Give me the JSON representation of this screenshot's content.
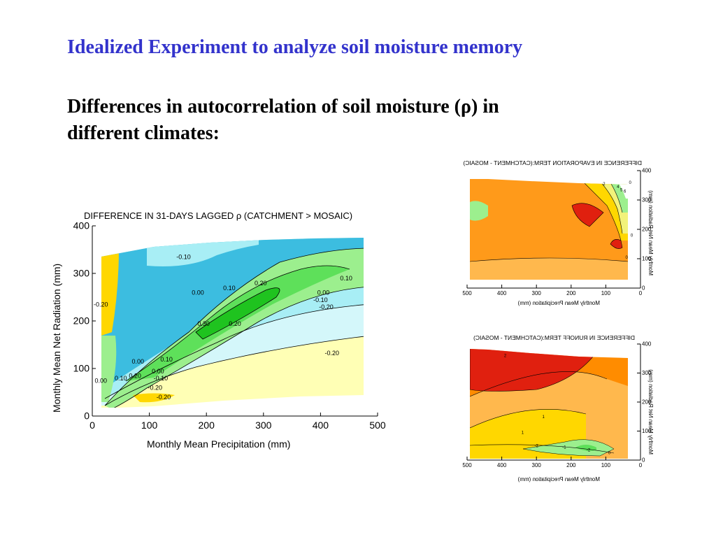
{
  "slide": {
    "title": "Idealized Experiment to analyze soil moisture memory",
    "subtitle_line1": "Differences in autocorrelation of soil moisture (ρ) in",
    "subtitle_line2": "different climates:"
  },
  "colors": {
    "title": "#3333cc",
    "neg_strong": "#3cbde0",
    "neg": "#a8eef5",
    "neg_weak": "#d4f7fa",
    "pos_weak": "#ffffb5",
    "pos": "#f2f27a",
    "green_light": "#9cef8e",
    "green_mid": "#5ee05a",
    "green_dark": "#1fc31f",
    "yellow": "#ffd700",
    "orange": "#ff9a1a",
    "orange_dark": "#ff8400",
    "red": "#e0200f"
  },
  "chart_data": [
    {
      "id": "lagged-rho",
      "type": "contour",
      "title": "DIFFERENCE IN 31-DAYS LAGGED ρ (CATCHMENT > MOSAIC)",
      "xlabel": "Monthly Mean Precipitation (mm)",
      "ylabel": "Monthly Mean Net Radiation (mm)",
      "xlim": [
        0,
        500
      ],
      "ylim": [
        0,
        400
      ],
      "xticks": [
        0,
        100,
        200,
        300,
        400,
        500
      ],
      "yticks": [
        0,
        100,
        200,
        300,
        400
      ],
      "contour_labels": [
        {
          "text": "-0.10",
          "x": 160,
          "y": 330
        },
        {
          "text": "0.00",
          "x": 185,
          "y": 255
        },
        {
          "text": "0.10",
          "x": 240,
          "y": 265
        },
        {
          "text": "0.20",
          "x": 295,
          "y": 275
        },
        {
          "text": "0.10",
          "x": 445,
          "y": 285
        },
        {
          "text": "0.00",
          "x": 405,
          "y": 255
        },
        {
          "text": "-0.10",
          "x": 400,
          "y": 240
        },
        {
          "text": "-0.20",
          "x": 410,
          "y": 225
        },
        {
          "text": "0.30",
          "x": 195,
          "y": 190
        },
        {
          "text": "0.20",
          "x": 250,
          "y": 190
        },
        {
          "text": "-0.20",
          "x": 420,
          "y": 128
        },
        {
          "text": "0.00",
          "x": 80,
          "y": 110
        },
        {
          "text": "0.10",
          "x": 130,
          "y": 115
        },
        {
          "text": "0.00",
          "x": 115,
          "y": 90
        },
        {
          "text": "-0.10",
          "x": 120,
          "y": 75
        },
        {
          "text": "-0.20",
          "x": 110,
          "y": 55
        },
        {
          "text": "0.20",
          "x": 75,
          "y": 80
        },
        {
          "text": "0.10",
          "x": 50,
          "y": 75
        },
        {
          "text": "-0.20",
          "x": 125,
          "y": 35
        },
        {
          "text": "-0.20",
          "x": 15,
          "y": 230
        },
        {
          "text": "0.00",
          "x": 15,
          "y": 70
        }
      ]
    },
    {
      "id": "evaporation-term",
      "type": "contour",
      "title": "DIFFERENCE IN EVAPORATION TERM:(CATCHMENT - MOSAIC)",
      "xlabel": "Monthly Mean Precipitation (mm)",
      "ylabel": "Monthly Mean Net Radiation (mm)",
      "xlim": [
        0,
        500
      ],
      "ylim": [
        0,
        400
      ],
      "xticks": [
        0,
        100,
        200,
        300,
        400,
        500
      ],
      "yticks": [
        0,
        100,
        200,
        300,
        400
      ],
      "contour_labels": [
        {
          "text": "0",
          "x": 30,
          "y": 355
        },
        {
          "text": "0",
          "x": 40,
          "y": 100
        },
        {
          "text": "0",
          "x": 25,
          "y": 175
        },
        {
          "text": "2",
          "x": 105,
          "y": 350
        },
        {
          "text": "4",
          "x": 65,
          "y": 340
        },
        {
          "text": "5",
          "x": 55,
          "y": 330
        },
        {
          "text": "6",
          "x": 45,
          "y": 325
        }
      ]
    },
    {
      "id": "runoff-term",
      "type": "contour",
      "title": "DIFFERENCE IN RUNOFF TERM:(CATCHMENT - MOSAIC)",
      "xlabel": "Monthly Mean Precipitation (mm)",
      "ylabel": "Monthly Mean Net Radiation (mm)",
      "xlim": [
        0,
        500
      ],
      "ylim": [
        0,
        400
      ],
      "xticks": [
        0,
        100,
        200,
        300,
        400,
        500
      ],
      "yticks": [
        0,
        100,
        200,
        300,
        400
      ],
      "contour_labels": [
        {
          "text": "2",
          "x": 390,
          "y": 355
        },
        {
          "text": "1",
          "x": 280,
          "y": 145
        },
        {
          "text": "1",
          "x": 340,
          "y": 90
        },
        {
          "text": "0",
          "x": 90,
          "y": 20
        },
        {
          "text": "-2",
          "x": 150,
          "y": 30
        },
        {
          "text": "-1",
          "x": 220,
          "y": 40
        },
        {
          "text": "-2",
          "x": 300,
          "y": 45
        }
      ]
    }
  ]
}
